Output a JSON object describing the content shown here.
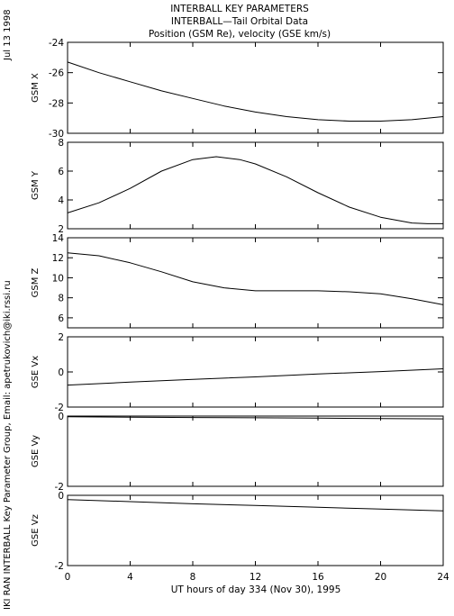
{
  "header": {
    "title_lines": [
      "INTERBALL KEY PARAMETERS",
      "INTERBALL—Tail Orbital Data",
      "Position (GSM Re), velocity (GSE km/s)"
    ],
    "date_label": "Jul 13 1998",
    "credit": "IKI RAN INTERBALL Key Parameter Group, Email: apetrukovich@iki.rssi.ru"
  },
  "chart_data": [
    {
      "type": "line",
      "ylabel": "GSM X",
      "ylim": [
        -30,
        -24
      ],
      "yticks": [
        -30,
        -28,
        -26,
        -24
      ],
      "x": [
        0,
        2,
        4,
        6,
        8,
        10,
        12,
        14,
        16,
        18,
        20,
        22,
        24
      ],
      "values": [
        -25.3,
        -26.0,
        -26.6,
        -27.2,
        -27.7,
        -28.2,
        -28.6,
        -28.9,
        -29.1,
        -29.2,
        -29.2,
        -29.1,
        -28.9
      ]
    },
    {
      "type": "line",
      "ylabel": "GSM Y",
      "ylim": [
        2,
        8
      ],
      "yticks": [
        2,
        4,
        6,
        8
      ],
      "x": [
        0,
        2,
        4,
        6,
        8,
        9.5,
        11,
        12,
        14,
        16,
        18,
        20,
        22,
        23,
        24
      ],
      "values": [
        3.1,
        3.8,
        4.8,
        6.0,
        6.8,
        7.0,
        6.8,
        6.5,
        5.6,
        4.5,
        3.5,
        2.8,
        2.4,
        2.35,
        2.35
      ]
    },
    {
      "type": "line",
      "ylabel": "GSM Z",
      "ylim": [
        5,
        14
      ],
      "yticks": [
        6,
        8,
        10,
        12,
        14
      ],
      "x": [
        0,
        2,
        4,
        6,
        8,
        10,
        12,
        14,
        16,
        18,
        20,
        22,
        24
      ],
      "values": [
        12.5,
        12.2,
        11.5,
        10.6,
        9.6,
        9.0,
        8.7,
        8.7,
        8.7,
        8.6,
        8.4,
        7.9,
        7.3
      ]
    },
    {
      "type": "line",
      "ylabel": "GSE Vx",
      "ylim": [
        -2,
        2
      ],
      "yticks": [
        -2,
        0,
        2
      ],
      "x": [
        0,
        4,
        8,
        12,
        16,
        20,
        24
      ],
      "values": [
        -0.75,
        -0.58,
        -0.42,
        -0.28,
        -0.12,
        0.02,
        0.18
      ]
    },
    {
      "type": "line",
      "ylabel": "GSE Vy",
      "ylim": [
        -2,
        0
      ],
      "yticks": [
        -2,
        0
      ],
      "x": [
        0,
        4,
        8,
        12,
        16,
        20,
        24
      ],
      "values": [
        -0.02,
        -0.03,
        -0.04,
        -0.05,
        -0.06,
        -0.07,
        -0.08
      ]
    },
    {
      "type": "line",
      "ylabel": "GSE Vz",
      "ylim": [
        -2,
        0
      ],
      "yticks": [
        -2,
        0
      ],
      "x": [
        0,
        4,
        8,
        12,
        16,
        20,
        24
      ],
      "values": [
        -0.12,
        -0.18,
        -0.24,
        -0.29,
        -0.34,
        -0.39,
        -0.44
      ]
    }
  ],
  "x_axis": {
    "xlim": [
      0,
      24
    ],
    "ticks": [
      0,
      4,
      8,
      12,
      16,
      20,
      24
    ],
    "label": "UT hours of day 334 (Nov 30), 1995"
  }
}
